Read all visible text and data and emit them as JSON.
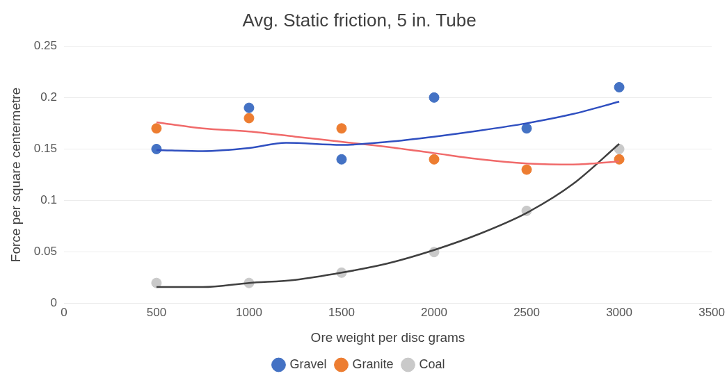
{
  "chart_data": {
    "type": "scatter",
    "title": "Avg. Static friction, 5 in. Tube",
    "xlabel": "Ore weight per disc grams",
    "ylabel": "Force per square centermetre",
    "x": [
      500,
      1000,
      1500,
      2000,
      2500,
      3000
    ],
    "series": [
      {
        "name": "Gravel",
        "color": "#4472c4",
        "values": [
          0.15,
          0.19,
          0.14,
          0.2,
          0.17,
          0.21
        ]
      },
      {
        "name": "Granite",
        "color": "#ed7d31",
        "values": [
          0.17,
          0.18,
          0.17,
          0.14,
          0.13,
          0.14
        ]
      },
      {
        "name": "Coal",
        "color": "#c9c9c9",
        "values": [
          0.02,
          0.02,
          0.03,
          0.05,
          0.09,
          0.15
        ]
      },
      {
        "type": "line",
        "marker": "none",
        "color": "#2f4fc0",
        "x": [
          500,
          750,
          1000,
          1200,
          1500,
          1750,
          2000,
          2250,
          2500,
          2750,
          3000
        ],
        "values": [
          0.149,
          0.148,
          0.151,
          0.156,
          0.154,
          0.157,
          0.162,
          0.168,
          0.175,
          0.184,
          0.196
        ]
      },
      {
        "type": "line",
        "marker": "none",
        "color": "#f06a6a",
        "x": [
          500,
          750,
          1000,
          1250,
          1500,
          1750,
          2000,
          2250,
          2500,
          2750,
          3000
        ],
        "values": [
          0.176,
          0.17,
          0.167,
          0.162,
          0.157,
          0.152,
          0.146,
          0.14,
          0.136,
          0.135,
          0.138
        ]
      },
      {
        "type": "line",
        "marker": "none",
        "color": "#404040",
        "x": [
          500,
          750,
          1000,
          1250,
          1500,
          1750,
          2000,
          2250,
          2500,
          2750,
          3000
        ],
        "values": [
          0.016,
          0.016,
          0.02,
          0.023,
          0.03,
          0.039,
          0.052,
          0.068,
          0.088,
          0.116,
          0.155
        ]
      }
    ],
    "xlim": [
      0,
      3500
    ],
    "xticks": [
      0,
      500,
      1000,
      1500,
      2000,
      2500,
      3000,
      3500
    ],
    "ylim": [
      0,
      0.25
    ],
    "yticks": [
      0,
      0.05,
      0.1,
      0.15,
      0.2,
      0.25
    ],
    "grid": "y",
    "legend": "bottom",
    "marker": "circle",
    "line_style": "solid"
  }
}
